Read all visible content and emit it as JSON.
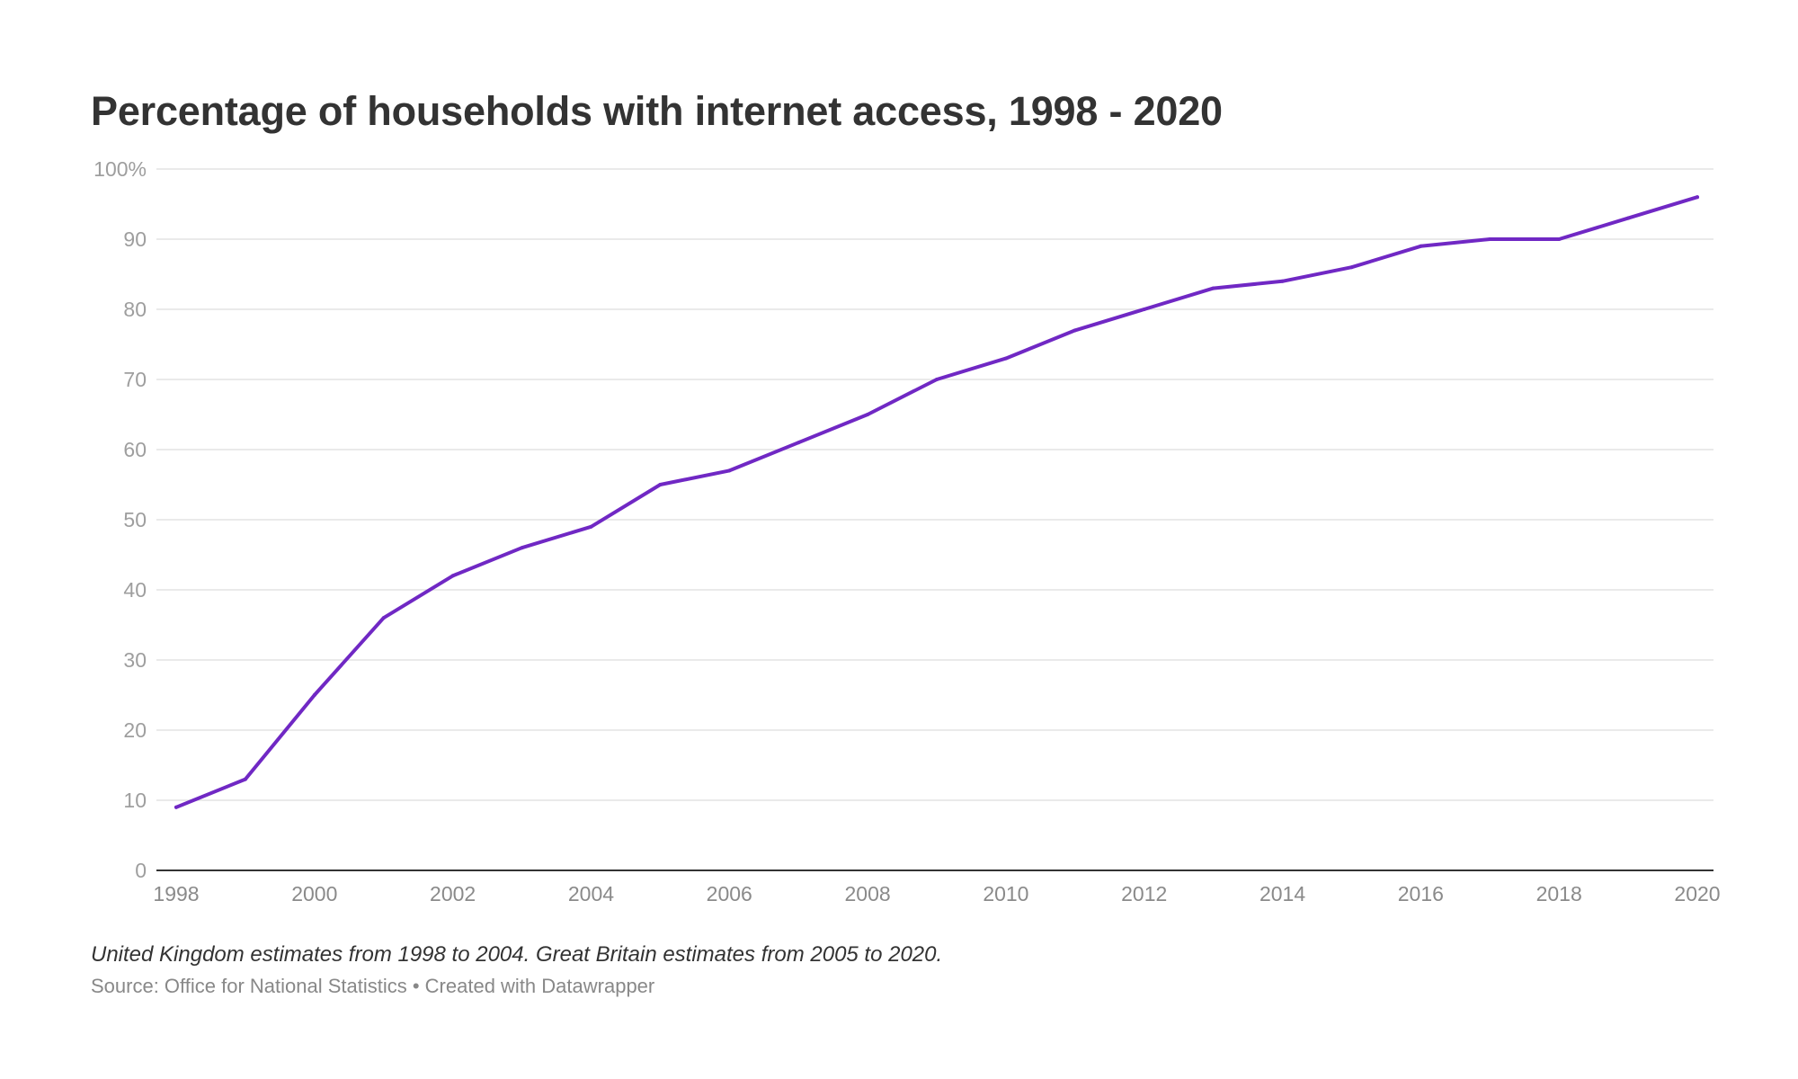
{
  "chart_data": {
    "type": "line",
    "title": "Percentage of households with internet access, 1998 - 2020",
    "note": "United Kingdom estimates from 1998 to 2004. Great Britain estimates from 2005 to 2020.",
    "source": "Source: Office for National Statistics • Created with Datawrapper",
    "x": [
      1998,
      1999,
      2000,
      2001,
      2002,
      2003,
      2004,
      2005,
      2006,
      2007,
      2008,
      2009,
      2010,
      2011,
      2012,
      2013,
      2014,
      2015,
      2016,
      2017,
      2018,
      2019,
      2020
    ],
    "series": [
      {
        "values": [
          9,
          13,
          25,
          36,
          42,
          46,
          49,
          55,
          57,
          61,
          65,
          70,
          73,
          77,
          80,
          83,
          84,
          86,
          89,
          90,
          90,
          93,
          96
        ]
      }
    ],
    "xlim": [
      1998,
      2020
    ],
    "ylim": [
      0,
      100
    ],
    "x_ticks": [
      "1998",
      "2000",
      "2002",
      "2004",
      "2006",
      "2008",
      "2010",
      "2012",
      "2014",
      "2016",
      "2018",
      "2020"
    ],
    "y_ticks": [
      {
        "value": 0,
        "label": "0"
      },
      {
        "value": 10,
        "label": "10"
      },
      {
        "value": 20,
        "label": "20"
      },
      {
        "value": 30,
        "label": "30"
      },
      {
        "value": 40,
        "label": "40"
      },
      {
        "value": 50,
        "label": "50"
      },
      {
        "value": 60,
        "label": "60"
      },
      {
        "value": 70,
        "label": "70"
      },
      {
        "value": 80,
        "label": "80"
      },
      {
        "value": 90,
        "label": "90"
      },
      {
        "value": 100,
        "label": "100%"
      }
    ],
    "grid": true,
    "colors": {
      "line": "#7028c4",
      "grid": "#e3e3e3",
      "baseline": "#333333"
    }
  }
}
